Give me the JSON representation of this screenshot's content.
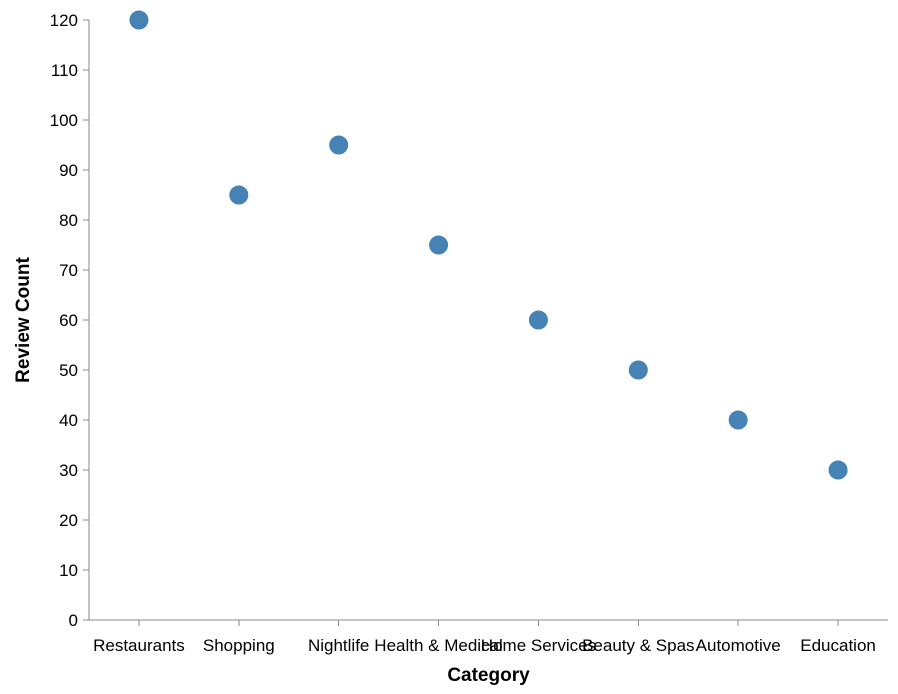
{
  "chart_data": {
    "type": "scatter",
    "title": "",
    "xlabel": "Category",
    "ylabel": "Review Count",
    "categories": [
      "Restaurants",
      "Shopping",
      "Nightlife",
      "Health & Medical",
      "Home Services",
      "Beauty & Spas",
      "Automotive",
      "Education"
    ],
    "values": [
      120,
      85,
      95,
      75,
      60,
      50,
      40,
      30
    ],
    "ylim": [
      0,
      120
    ],
    "yticks": [
      0,
      10,
      20,
      30,
      40,
      50,
      60,
      70,
      80,
      90,
      100,
      110,
      120
    ],
    "grid": false,
    "point_color": "#4682b4"
  }
}
